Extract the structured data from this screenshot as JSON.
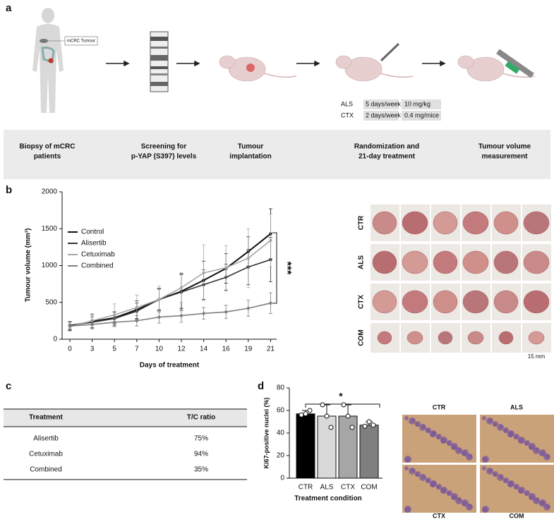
{
  "panel_labels": [
    "a",
    "b",
    "c",
    "d"
  ],
  "workflow": {
    "tumour_label": "mCRC Tumour",
    "steps": [
      [
        "Biopsy of mCRC",
        "patients"
      ],
      [
        "Screening for",
        "p-YAP (S397) levels"
      ],
      [
        "Tumour",
        "implantation"
      ],
      [
        "Randomization and",
        "21-day treatment"
      ],
      [
        "Tumour volume",
        "measurement"
      ]
    ],
    "regimen": [
      [
        "ALS",
        "5 days/week",
        "10 mg/kg"
      ],
      [
        "CTX",
        "2 days/week",
        "0.4 mg/mice"
      ]
    ]
  },
  "chart_data": [
    {
      "type": "line",
      "ylabel": "Tumour volume (mm³)",
      "xlabel": "Days of treatment",
      "categories": [
        0,
        3,
        5,
        7,
        10,
        12,
        14,
        16,
        19,
        21
      ],
      "series": [
        {
          "name": "Control",
          "color": "#111111",
          "values": [
            180,
            240,
            290,
            400,
            540,
            650,
            800,
            960,
            1190,
            1430
          ],
          "error": [
            60,
            90,
            80,
            120,
            150,
            230,
            260,
            200,
            200,
            340
          ]
        },
        {
          "name": "Alisertib",
          "color": "#333333",
          "values": [
            190,
            230,
            280,
            380,
            540,
            640,
            740,
            840,
            980,
            1080
          ],
          "error": [
            50,
            70,
            90,
            110,
            140,
            250,
            200,
            180,
            240,
            300
          ]
        },
        {
          "name": "Cetuximab",
          "color": "#a6a6a6",
          "values": [
            170,
            250,
            330,
            430,
            540,
            700,
            900,
            970,
            1100,
            1340
          ],
          "error": [
            60,
            100,
            150,
            170,
            180,
            200,
            380,
            300,
            400,
            360
          ]
        },
        {
          "name": "Combined",
          "color": "#7f7f7f",
          "values": [
            180,
            200,
            230,
            250,
            300,
            320,
            350,
            370,
            420,
            490
          ],
          "error": [
            50,
            60,
            60,
            70,
            80,
            90,
            80,
            90,
            110,
            140
          ]
        }
      ],
      "ylim": [
        0,
        2000
      ],
      "yticks": [
        0,
        500,
        1000,
        1500,
        2000
      ],
      "annotation": "***"
    },
    {
      "type": "bar",
      "ylabel": "Ki67-positive nuclei (%)",
      "xlabel": "Treatment condition",
      "categories": [
        "CTR",
        "ALS",
        "CTX",
        "COM"
      ],
      "values": [
        57,
        55,
        55,
        47
      ],
      "error": [
        3,
        10,
        10,
        3
      ],
      "colors": [
        "#000000",
        "#d9d9d9",
        "#a6a6a6",
        "#7f7f7f"
      ],
      "points": [
        [
          56,
          57,
          60
        ],
        [
          65,
          55,
          45
        ],
        [
          65,
          55,
          45
        ],
        [
          46,
          50,
          47
        ]
      ],
      "ylim": [
        0,
        80
      ],
      "yticks": [
        0,
        20,
        40,
        60,
        80
      ],
      "annotation": "*"
    }
  ],
  "photos": {
    "rows": [
      "CTR",
      "ALS",
      "CTX",
      "COM"
    ],
    "scale": "15 mm"
  },
  "table": {
    "header": [
      "Treatment",
      "T/C ratio"
    ],
    "rows": [
      [
        "Alisertib",
        "75%"
      ],
      [
        "Cetuximab",
        "94%"
      ],
      [
        "Combined",
        "35%"
      ]
    ]
  },
  "micrographs": [
    "CTR",
    "ALS",
    "CTX",
    "COM"
  ]
}
